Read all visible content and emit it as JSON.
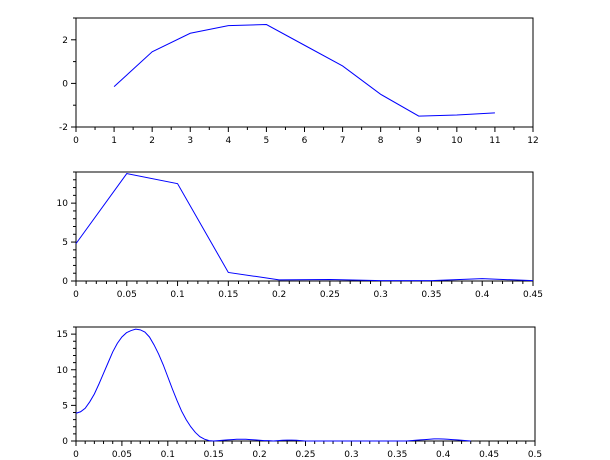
{
  "chart_data": [
    {
      "type": "line",
      "xlim": [
        0,
        12
      ],
      "ylim": [
        -2,
        3
      ],
      "x_ticks": [
        "0",
        "1",
        "2",
        "3",
        "4",
        "5",
        "6",
        "7",
        "8",
        "9",
        "10",
        "11",
        "12"
      ],
      "y_ticks": [
        "-2",
        "0",
        "2"
      ],
      "grid": false,
      "line_color": "#0000ff",
      "series": [
        {
          "x": [
            1,
            2,
            3,
            4,
            5,
            6,
            7,
            8,
            9,
            10,
            11
          ],
          "y": [
            -0.15,
            1.45,
            2.3,
            2.65,
            2.7,
            1.75,
            0.8,
            -0.5,
            -1.5,
            -1.45,
            -1.35
          ]
        }
      ]
    },
    {
      "type": "line",
      "xlim": [
        0,
        0.45
      ],
      "ylim": [
        0,
        14
      ],
      "x_ticks": [
        "0",
        "0.05",
        "0.1",
        "0.15",
        "0.2",
        "0.25",
        "0.3",
        "0.35",
        "0.4",
        "0.45"
      ],
      "y_ticks": [
        "0",
        "5",
        "10"
      ],
      "grid": false,
      "line_color": "#0000ff",
      "series": [
        {
          "x": [
            0,
            0.05,
            0.1,
            0.15,
            0.2,
            0.25,
            0.3,
            0.35,
            0.4,
            0.45
          ],
          "y": [
            4.8,
            13.8,
            12.5,
            1.1,
            0.15,
            0.2,
            0.05,
            0.05,
            0.3,
            0.05
          ]
        }
      ]
    },
    {
      "type": "line",
      "xlim": [
        0,
        0.5
      ],
      "ylim": [
        0,
        16
      ],
      "x_ticks": [
        "0",
        "0.05",
        "0.1",
        "0.15",
        "0.2",
        "0.25",
        "0.3",
        "0.35",
        "0.4",
        "0.45",
        "0.5"
      ],
      "y_ticks": [
        "0",
        "5",
        "10",
        "15"
      ],
      "grid": false,
      "line_color": "#0000ff",
      "series": [
        {
          "x": [
            0,
            0.005,
            0.01,
            0.015,
            0.02,
            0.025,
            0.03,
            0.035,
            0.04,
            0.045,
            0.05,
            0.055,
            0.06,
            0.065,
            0.07,
            0.075,
            0.08,
            0.085,
            0.09,
            0.095,
            0.1,
            0.105,
            0.11,
            0.115,
            0.12,
            0.125,
            0.13,
            0.135,
            0.14,
            0.145,
            0.15,
            0.155,
            0.16,
            0.165,
            0.17,
            0.175,
            0.18,
            0.185,
            0.19,
            0.195,
            0.2,
            0.205,
            0.21,
            0.215,
            0.22,
            0.225,
            0.23,
            0.235,
            0.24,
            0.245,
            0.25,
            0.255,
            0.26,
            0.265,
            0.27,
            0.275,
            0.28,
            0.285,
            0.29,
            0.295,
            0.3,
            0.305,
            0.31,
            0.315,
            0.32,
            0.325,
            0.33,
            0.335,
            0.34,
            0.345,
            0.35,
            0.355,
            0.36,
            0.365,
            0.37,
            0.375,
            0.38,
            0.385,
            0.39,
            0.395,
            0.4,
            0.405,
            0.41,
            0.415,
            0.42,
            0.425,
            0.43
          ],
          "y": [
            3.9,
            4.1,
            4.6,
            5.5,
            6.6,
            8.0,
            9.5,
            11.0,
            12.5,
            13.7,
            14.6,
            15.2,
            15.5,
            15.7,
            15.6,
            15.3,
            14.6,
            13.5,
            12.2,
            10.7,
            9.0,
            7.3,
            5.7,
            4.2,
            3.0,
            2.0,
            1.2,
            0.6,
            0.25,
            0.05,
            0.0,
            0.05,
            0.1,
            0.15,
            0.2,
            0.25,
            0.25,
            0.25,
            0.2,
            0.15,
            0.1,
            0.05,
            0.05,
            0.0,
            0.05,
            0.1,
            0.12,
            0.12,
            0.1,
            0.05,
            0.0,
            0.0,
            0.0,
            0.0,
            0.0,
            0.0,
            0.0,
            0.0,
            0.0,
            0.0,
            0.0,
            0.0,
            0.0,
            0.0,
            0.0,
            0.0,
            0.0,
            0.0,
            0.0,
            0.0,
            0.0,
            0.0,
            0.0,
            0.05,
            0.1,
            0.15,
            0.2,
            0.25,
            0.3,
            0.3,
            0.28,
            0.25,
            0.2,
            0.15,
            0.1,
            0.05,
            0.0
          ]
        }
      ]
    }
  ]
}
